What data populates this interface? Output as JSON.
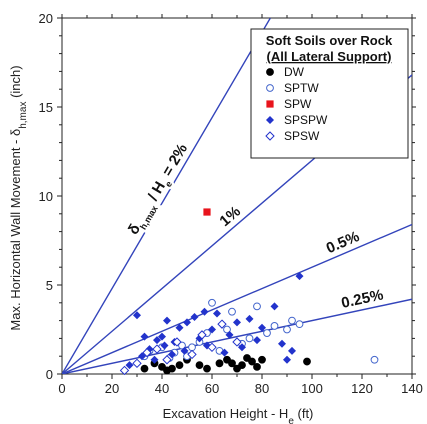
{
  "chart_data": {
    "type": "scatter",
    "xlabel": "Excavation Height - H",
    "xlabel_sub": "e",
    "xlabel_unit": " (ft)",
    "ylabel": "Max. Horizontal Wall Movement - δ",
    "ylabel_sub": "h,max",
    "ylabel_unit": " (inch)",
    "xlim": [
      0,
      140
    ],
    "ylim": [
      0,
      20
    ],
    "xticks": [
      "0",
      "20",
      "40",
      "60",
      "80",
      "100",
      "120",
      "140"
    ],
    "yticks": [
      "0",
      "5",
      "10",
      "15",
      "20"
    ],
    "legend": {
      "position": "top-right",
      "title_line1": "Soft Soils over Rock",
      "title_line2": "(All Lateral Support)"
    },
    "reference_lines": [
      {
        "ratio_percent": 2,
        "label_main": "δ",
        "label_sub": "h,max",
        "label_end": " / H",
        "label_sub2": "e",
        "label_tail": " = 2%"
      },
      {
        "ratio_percent": 1,
        "label": "1%"
      },
      {
        "ratio_percent": 0.5,
        "label": "0.5%"
      },
      {
        "ratio_percent": 0.25,
        "label": "0.25%"
      }
    ],
    "series": [
      {
        "name": "DW",
        "marker": "circle-filled",
        "color": "#000000",
        "points": [
          [
            33,
            0.3
          ],
          [
            37,
            0.6
          ],
          [
            40,
            0.4
          ],
          [
            42,
            0.2
          ],
          [
            44,
            0.3
          ],
          [
            47,
            0.5
          ],
          [
            50,
            0.8
          ],
          [
            55,
            0.5
          ],
          [
            58,
            0.3
          ],
          [
            63,
            0.6
          ],
          [
            66,
            0.8
          ],
          [
            68,
            0.6
          ],
          [
            70,
            0.3
          ],
          [
            72,
            0.5
          ],
          [
            74,
            0.9
          ],
          [
            76,
            0.7
          ],
          [
            78,
            0.4
          ],
          [
            80,
            0.8
          ],
          [
            98,
            0.7
          ]
        ]
      },
      {
        "name": "SPTW",
        "marker": "circle-open",
        "color": "#4466cc",
        "points": [
          [
            33,
            1.0
          ],
          [
            35,
            1.3
          ],
          [
            40,
            1.5
          ],
          [
            43,
            0.9
          ],
          [
            45,
            1.2
          ],
          [
            48,
            1.6
          ],
          [
            50,
            1.0
          ],
          [
            52,
            1.5
          ],
          [
            55,
            1.8
          ],
          [
            58,
            2.3
          ],
          [
            60,
            4.0
          ],
          [
            63,
            1.3
          ],
          [
            66,
            2.5
          ],
          [
            68,
            3.5
          ],
          [
            72,
            1.7
          ],
          [
            75,
            2.0
          ],
          [
            78,
            3.8
          ],
          [
            82,
            2.3
          ],
          [
            85,
            2.7
          ],
          [
            90,
            2.5
          ],
          [
            92,
            3.0
          ],
          [
            95,
            2.8
          ],
          [
            125,
            0.8
          ]
        ]
      },
      {
        "name": "SPW",
        "marker": "square-filled",
        "color": "#e8141c",
        "points": [
          [
            58,
            9.1
          ]
        ]
      },
      {
        "name": "SPSPW",
        "marker": "diamond-filled",
        "color": "#2233cc",
        "points": [
          [
            27,
            0.5
          ],
          [
            30,
            3.3
          ],
          [
            32,
            1.0
          ],
          [
            33,
            2.1
          ],
          [
            35,
            1.4
          ],
          [
            37,
            0.8
          ],
          [
            38,
            1.9
          ],
          [
            40,
            2.1
          ],
          [
            41,
            1.6
          ],
          [
            42,
            3.0
          ],
          [
            44,
            1.1
          ],
          [
            45,
            1.8
          ],
          [
            47,
            2.6
          ],
          [
            49,
            1.3
          ],
          [
            50,
            2.9
          ],
          [
            53,
            3.2
          ],
          [
            55,
            2.0
          ],
          [
            57,
            3.5
          ],
          [
            58,
            1.6
          ],
          [
            60,
            2.5
          ],
          [
            62,
            3.4
          ],
          [
            65,
            1.2
          ],
          [
            67,
            2.2
          ],
          [
            70,
            2.9
          ],
          [
            72,
            1.5
          ],
          [
            75,
            3.1
          ],
          [
            78,
            1.9
          ],
          [
            80,
            2.6
          ],
          [
            85,
            3.8
          ],
          [
            88,
            1.7
          ],
          [
            90,
            0.8
          ],
          [
            92,
            1.3
          ],
          [
            95,
            5.5
          ]
        ]
      },
      {
        "name": "SPSW",
        "marker": "diamond-open",
        "color": "#2233cc",
        "points": [
          [
            25,
            0.2
          ],
          [
            30,
            0.6
          ],
          [
            34,
            1.2
          ],
          [
            38,
            1.4
          ],
          [
            42,
            0.8
          ],
          [
            46,
            1.8
          ],
          [
            52,
            1.1
          ],
          [
            56,
            2.2
          ],
          [
            60,
            1.5
          ],
          [
            64,
            2.8
          ],
          [
            70,
            1.8
          ]
        ]
      }
    ]
  }
}
